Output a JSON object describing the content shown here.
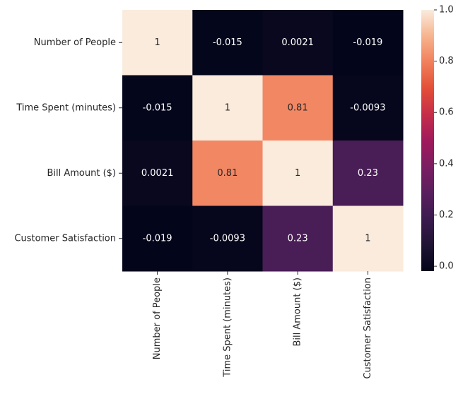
{
  "chart_data": {
    "type": "heatmap",
    "title": "",
    "xlabel": "",
    "ylabel": "",
    "x_categories": [
      "Number of People",
      "Time Spent (minutes)",
      "Bill Amount ($)",
      "Customer Satisfaction"
    ],
    "y_categories": [
      "Number of People",
      "Time Spent (minutes)",
      "Bill Amount ($)",
      "Customer Satisfaction"
    ],
    "values": [
      [
        1,
        -0.015,
        0.0021,
        -0.019
      ],
      [
        -0.015,
        1,
        0.81,
        -0.0093
      ],
      [
        0.0021,
        0.81,
        1,
        0.23
      ],
      [
        -0.019,
        -0.0093,
        0.23,
        1
      ]
    ],
    "annotations": [
      [
        "1",
        "-0.015",
        "0.0021",
        "-0.019"
      ],
      [
        "-0.015",
        "1",
        "0.81",
        "-0.0093"
      ],
      [
        "0.0021",
        "0.81",
        "1",
        "0.23"
      ],
      [
        "-0.019",
        "-0.0093",
        "0.23",
        "1"
      ]
    ],
    "colormap": "rocket",
    "colorbar": {
      "range": [
        -0.019,
        1.0
      ],
      "ticks": [
        0.0,
        0.2,
        0.4,
        0.6,
        0.8,
        1.0
      ],
      "tick_labels": [
        "0.0",
        "0.2",
        "0.4",
        "0.6",
        "0.8",
        "1.0"
      ]
    }
  }
}
